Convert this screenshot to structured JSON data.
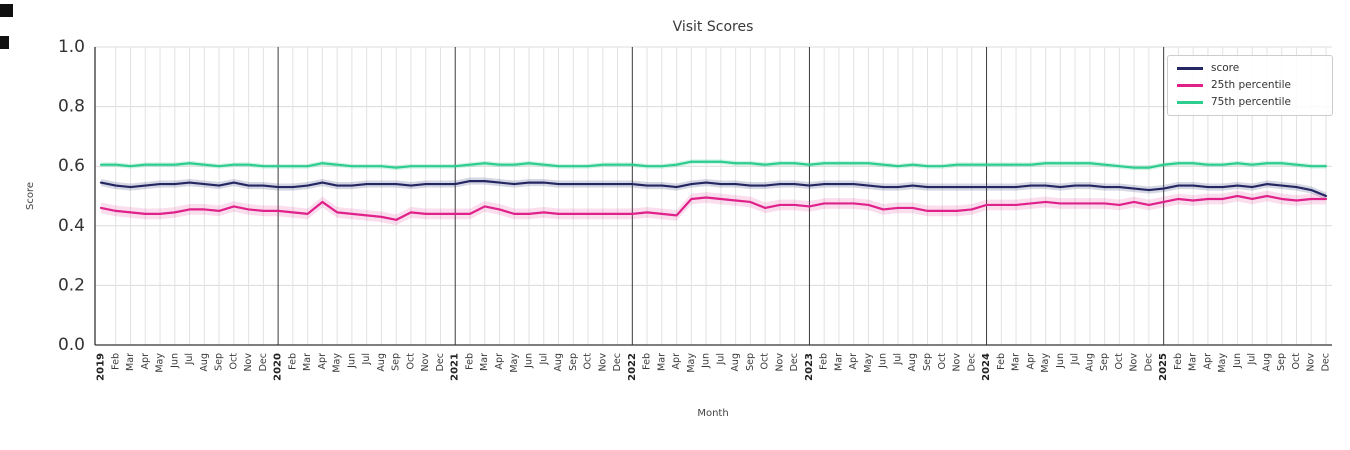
{
  "page": {
    "background": "#ffffff"
  },
  "chart_data": {
    "type": "line",
    "title": "Visit Scores",
    "xlabel": "Month",
    "ylabel": "Score",
    "ylim": [
      0.0,
      1.0
    ],
    "yticks": [
      0.0,
      0.2,
      0.4,
      0.6,
      0.8,
      1.0
    ],
    "grid": true,
    "legend_position": "upper right",
    "x": [
      "2019",
      "Feb",
      "Mar",
      "Apr",
      "May",
      "Jun",
      "Jul",
      "Aug",
      "Sep",
      "Oct",
      "Nov",
      "Dec",
      "2020",
      "Feb",
      "Mar",
      "Apr",
      "May",
      "Jun",
      "Jul",
      "Aug",
      "Sep",
      "Oct",
      "Nov",
      "Dec",
      "2021",
      "Feb",
      "Mar",
      "Apr",
      "May",
      "Jun",
      "Jul",
      "Aug",
      "Sep",
      "Oct",
      "Nov",
      "Dec",
      "2022",
      "Feb",
      "Mar",
      "Apr",
      "May",
      "Jun",
      "Jul",
      "Aug",
      "Sep",
      "Oct",
      "Nov",
      "Dec",
      "2023",
      "Feb",
      "Mar",
      "Apr",
      "May",
      "Jun",
      "Jul",
      "Aug",
      "Sep",
      "Oct",
      "Nov",
      "Dec",
      "2024",
      "Feb",
      "Mar",
      "Apr",
      "May",
      "Jun",
      "Jul",
      "Aug",
      "Sep",
      "Oct",
      "Nov",
      "Dec",
      "2025",
      "Feb",
      "Mar",
      "Apr",
      "May",
      "Jun",
      "Jul",
      "Aug",
      "Sep",
      "Oct",
      "Nov",
      "Dec"
    ],
    "series": [
      {
        "name": "score",
        "color": "#252763",
        "band_color": "rgba(70,75,130,0.22)",
        "band": 0.012,
        "values": [
          0.545,
          0.535,
          0.53,
          0.535,
          0.54,
          0.54,
          0.545,
          0.54,
          0.535,
          0.545,
          0.535,
          0.535,
          0.53,
          0.53,
          0.535,
          0.545,
          0.535,
          0.535,
          0.54,
          0.54,
          0.54,
          0.535,
          0.54,
          0.54,
          0.54,
          0.55,
          0.55,
          0.545,
          0.54,
          0.545,
          0.545,
          0.54,
          0.54,
          0.54,
          0.54,
          0.54,
          0.54,
          0.535,
          0.535,
          0.53,
          0.54,
          0.545,
          0.54,
          0.54,
          0.535,
          0.535,
          0.54,
          0.54,
          0.535,
          0.54,
          0.54,
          0.54,
          0.535,
          0.53,
          0.53,
          0.535,
          0.53,
          0.53,
          0.53,
          0.53,
          0.53,
          0.53,
          0.53,
          0.535,
          0.535,
          0.53,
          0.535,
          0.535,
          0.53,
          0.53,
          0.525,
          0.52,
          0.525,
          0.535,
          0.535,
          0.53,
          0.53,
          0.535,
          0.53,
          0.54,
          0.535,
          0.53,
          0.52,
          0.5
        ]
      },
      {
        "name": "25th percentile",
        "color": "#e0218a",
        "band_color": "rgba(224,33,138,0.15)",
        "band": 0.018,
        "values": [
          0.46,
          0.45,
          0.445,
          0.44,
          0.44,
          0.445,
          0.455,
          0.455,
          0.45,
          0.465,
          0.455,
          0.45,
          0.45,
          0.445,
          0.44,
          0.48,
          0.445,
          0.44,
          0.435,
          0.43,
          0.42,
          0.445,
          0.44,
          0.44,
          0.44,
          0.44,
          0.465,
          0.455,
          0.44,
          0.44,
          0.445,
          0.44,
          0.44,
          0.44,
          0.44,
          0.44,
          0.44,
          0.445,
          0.44,
          0.435,
          0.49,
          0.495,
          0.49,
          0.485,
          0.48,
          0.46,
          0.47,
          0.47,
          0.465,
          0.475,
          0.475,
          0.475,
          0.47,
          0.455,
          0.46,
          0.46,
          0.45,
          0.45,
          0.45,
          0.455,
          0.47,
          0.47,
          0.47,
          0.475,
          0.48,
          0.475,
          0.475,
          0.475,
          0.475,
          0.47,
          0.48,
          0.47,
          0.48,
          0.49,
          0.485,
          0.49,
          0.49,
          0.5,
          0.49,
          0.5,
          0.49,
          0.485,
          0.49,
          0.49
        ]
      },
      {
        "name": "75th percentile",
        "color": "#2dcc8f",
        "band_color": "rgba(46,203,143,0.22)",
        "band": 0.008,
        "values": [
          0.605,
          0.605,
          0.6,
          0.605,
          0.605,
          0.605,
          0.61,
          0.605,
          0.6,
          0.605,
          0.605,
          0.6,
          0.6,
          0.6,
          0.6,
          0.61,
          0.605,
          0.6,
          0.6,
          0.6,
          0.595,
          0.6,
          0.6,
          0.6,
          0.6,
          0.605,
          0.61,
          0.605,
          0.605,
          0.61,
          0.605,
          0.6,
          0.6,
          0.6,
          0.605,
          0.605,
          0.605,
          0.6,
          0.6,
          0.605,
          0.615,
          0.615,
          0.615,
          0.61,
          0.61,
          0.605,
          0.61,
          0.61,
          0.605,
          0.61,
          0.61,
          0.61,
          0.61,
          0.605,
          0.6,
          0.605,
          0.6,
          0.6,
          0.605,
          0.605,
          0.605,
          0.605,
          0.605,
          0.605,
          0.61,
          0.61,
          0.61,
          0.61,
          0.605,
          0.6,
          0.595,
          0.595,
          0.605,
          0.61,
          0.61,
          0.605,
          0.605,
          0.61,
          0.605,
          0.61,
          0.61,
          0.605,
          0.6,
          0.6
        ]
      }
    ]
  }
}
